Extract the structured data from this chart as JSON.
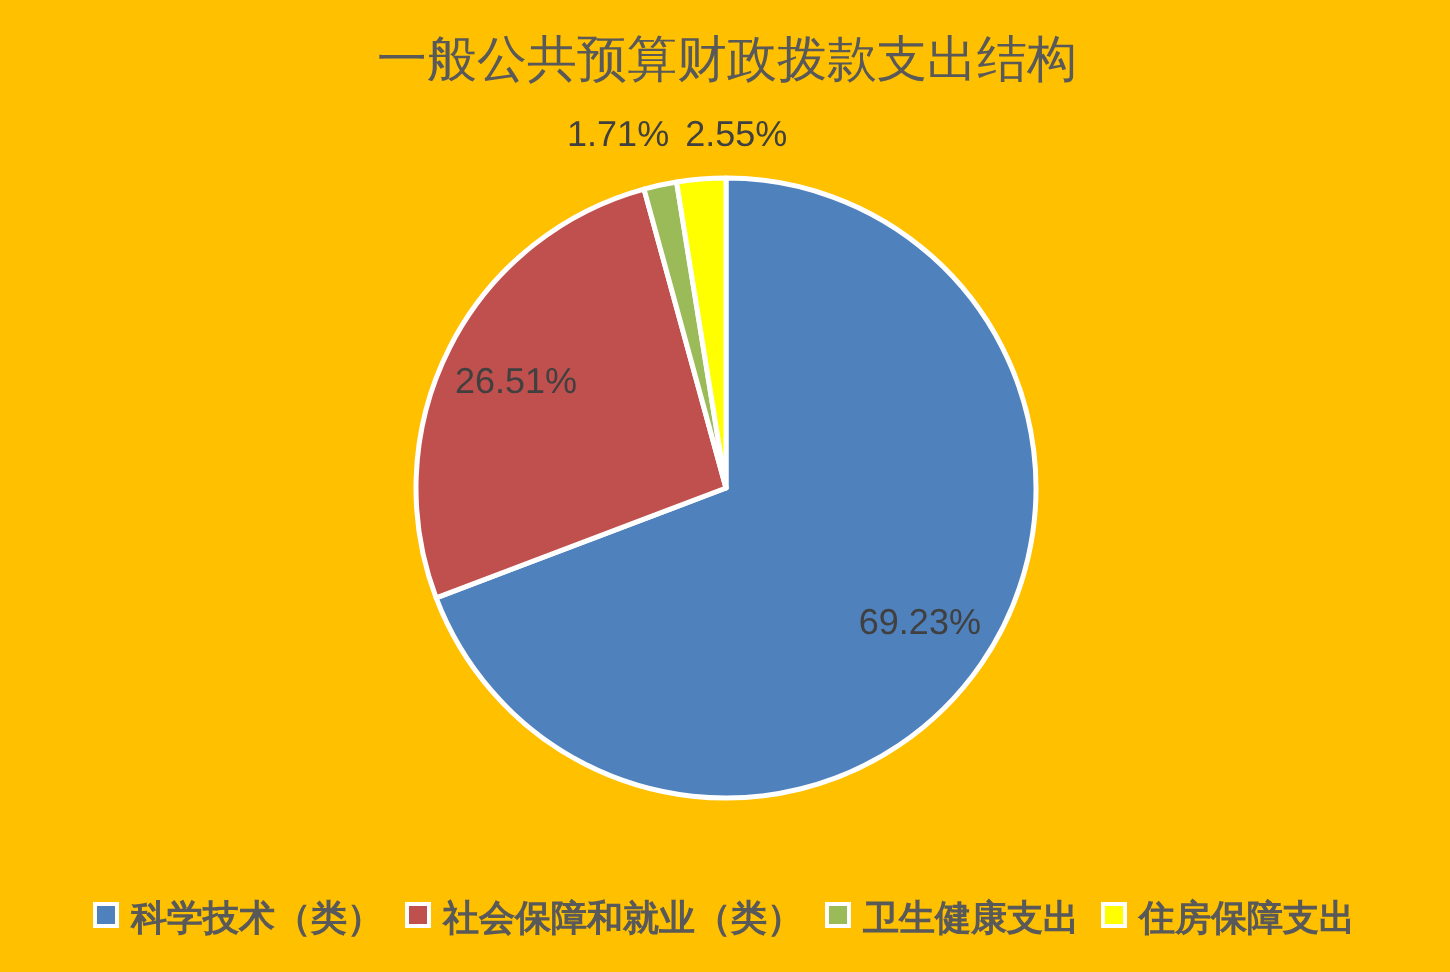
{
  "chart_data": {
    "type": "pie",
    "title": "一般公共预算财政拨款支出结构",
    "categories": [
      "科学技术（类）",
      "社会保障和就业（类）",
      "卫生健康支出",
      "住房保障支出"
    ],
    "values": [
      69.23,
      26.51,
      1.71,
      2.55
    ],
    "colors": [
      "#4f81bd",
      "#c0504d",
      "#9bbb59",
      "#ffff00"
    ],
    "value_labels": [
      "69.23%",
      "26.51%",
      "1.71%",
      "2.55%"
    ],
    "legend": "bottom"
  }
}
